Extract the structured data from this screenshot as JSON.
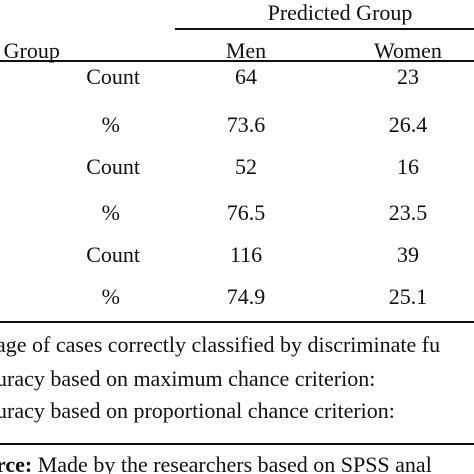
{
  "table": {
    "predicted_group_header": "Predicted Group",
    "actual_group_header": "l Group",
    "col_men": "Men",
    "col_women": "Women",
    "rows": [
      {
        "label": "Count",
        "men": "64",
        "women": "23"
      },
      {
        "label": "%",
        "men": "73.6",
        "women": "26.4"
      },
      {
        "label": "Count",
        "men": "52",
        "women": "16"
      },
      {
        "label": "%",
        "men": "76.5",
        "women": "23.5"
      },
      {
        "label": "Count",
        "men": "116",
        "women": "39"
      },
      {
        "label": "%",
        "men": "74.9",
        "women": "25.1"
      }
    ]
  },
  "notes": {
    "line1": "age of cases correctly classified by discriminate fu",
    "line2": "uracy based on maximum chance criterion:",
    "line3": "uracy based on proportional chance criterion:"
  },
  "source": {
    "label": "rce:",
    "text": " Made by the researchers based on SPSS anal"
  }
}
